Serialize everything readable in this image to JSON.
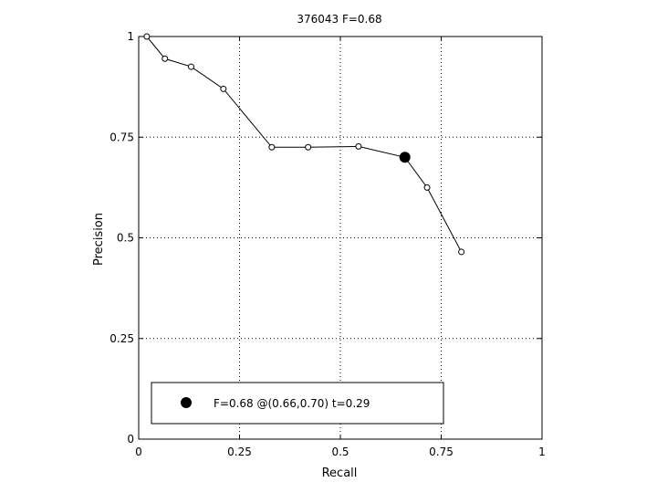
{
  "chart_data": {
    "type": "line",
    "title": "376043 F=0.68",
    "xlabel": "Recall",
    "ylabel": "Precision",
    "xlim": [
      0,
      1
    ],
    "ylim": [
      0,
      1
    ],
    "grid": true,
    "xticks": [
      0,
      0.25,
      0.5,
      0.75,
      1
    ],
    "yticks": [
      0,
      0.25,
      0.5,
      0.75,
      1
    ],
    "xtick_labels": [
      "0",
      "0.25",
      "0.5",
      "0.75",
      "1"
    ],
    "ytick_labels": [
      "0",
      "0.25",
      "0.5",
      "0.75",
      "1"
    ],
    "series": [
      {
        "x": [
          0.02,
          0.065,
          0.13,
          0.21,
          0.33,
          0.42,
          0.545,
          0.66,
          0.715,
          0.8
        ],
        "y": [
          1.0,
          0.945,
          0.925,
          0.87,
          0.725,
          0.725,
          0.727,
          0.7,
          0.625,
          0.465
        ]
      }
    ],
    "highlight_point": {
      "x": 0.66,
      "y": 0.7
    },
    "legend": {
      "text": "F=0.68 @(0.66,0.70) t=0.29",
      "placement": "bottom-left"
    }
  }
}
